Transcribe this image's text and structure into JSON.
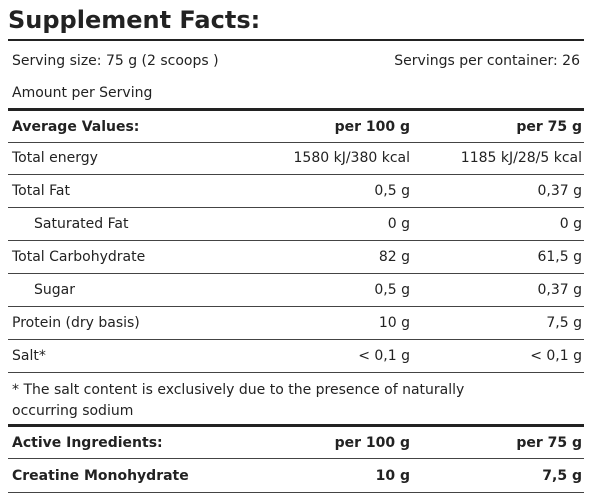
{
  "title": "Supplement Facts:",
  "serving": {
    "size": "Serving size:  75 g (2 scoops )",
    "per_container": "Servings per container: 26",
    "amount": "Amount per Serving"
  },
  "table": {
    "header": [
      "Average Values:",
      "per 100 g",
      "per 75 g"
    ],
    "rows": [
      [
        "Total energy",
        "1580 kJ/380 kcal",
        "1185 kJ/28/5 kcal"
      ],
      [
        "Total Fat",
        "0,5 g",
        "0,37 g"
      ],
      [
        "Saturated Fat",
        "0 g",
        "0 g"
      ],
      [
        "Total Carbohydrate",
        "82 g",
        "61,5 g"
      ],
      [
        "Sugar",
        "0,5 g",
        "0,37 g"
      ],
      [
        "Protein (dry basis)",
        "10 g",
        "7,5 g"
      ],
      [
        "Salt*",
        "< 0,1 g",
        "< 0,1 g"
      ]
    ],
    "footnote": "* The salt content is exclusively due to the presence of naturally occurring sodium"
  },
  "active": {
    "header": [
      "Active Ingredients:",
      "per 100 g",
      "per 75 g"
    ],
    "rows": [
      [
        "Creatine Monohydrate",
        "10 g",
        "7,5 g"
      ]
    ]
  }
}
